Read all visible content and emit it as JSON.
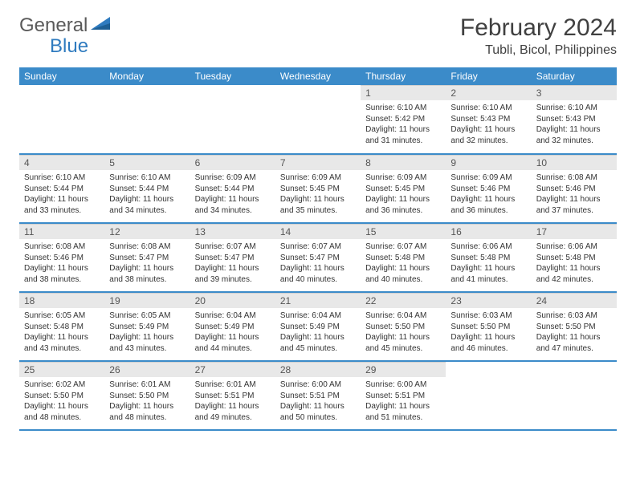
{
  "brand": {
    "general": "General",
    "blue": "Blue"
  },
  "title": "February 2024",
  "location": "Tubli, Bicol, Philippines",
  "colors": {
    "header_bg": "#3b8bc9",
    "header_text": "#ffffff",
    "daynum_bg": "#e8e8e8",
    "row_border": "#3b8bc9",
    "brand_blue": "#2f7bbf",
    "brand_gray": "#5a5a5a"
  },
  "weekdays": [
    "Sunday",
    "Monday",
    "Tuesday",
    "Wednesday",
    "Thursday",
    "Friday",
    "Saturday"
  ],
  "leading_blanks": 4,
  "days": [
    {
      "n": 1,
      "sr": "6:10 AM",
      "ss": "5:42 PM",
      "dl": "11 hours and 31 minutes."
    },
    {
      "n": 2,
      "sr": "6:10 AM",
      "ss": "5:43 PM",
      "dl": "11 hours and 32 minutes."
    },
    {
      "n": 3,
      "sr": "6:10 AM",
      "ss": "5:43 PM",
      "dl": "11 hours and 32 minutes."
    },
    {
      "n": 4,
      "sr": "6:10 AM",
      "ss": "5:44 PM",
      "dl": "11 hours and 33 minutes."
    },
    {
      "n": 5,
      "sr": "6:10 AM",
      "ss": "5:44 PM",
      "dl": "11 hours and 34 minutes."
    },
    {
      "n": 6,
      "sr": "6:09 AM",
      "ss": "5:44 PM",
      "dl": "11 hours and 34 minutes."
    },
    {
      "n": 7,
      "sr": "6:09 AM",
      "ss": "5:45 PM",
      "dl": "11 hours and 35 minutes."
    },
    {
      "n": 8,
      "sr": "6:09 AM",
      "ss": "5:45 PM",
      "dl": "11 hours and 36 minutes."
    },
    {
      "n": 9,
      "sr": "6:09 AM",
      "ss": "5:46 PM",
      "dl": "11 hours and 36 minutes."
    },
    {
      "n": 10,
      "sr": "6:08 AM",
      "ss": "5:46 PM",
      "dl": "11 hours and 37 minutes."
    },
    {
      "n": 11,
      "sr": "6:08 AM",
      "ss": "5:46 PM",
      "dl": "11 hours and 38 minutes."
    },
    {
      "n": 12,
      "sr": "6:08 AM",
      "ss": "5:47 PM",
      "dl": "11 hours and 38 minutes."
    },
    {
      "n": 13,
      "sr": "6:07 AM",
      "ss": "5:47 PM",
      "dl": "11 hours and 39 minutes."
    },
    {
      "n": 14,
      "sr": "6:07 AM",
      "ss": "5:47 PM",
      "dl": "11 hours and 40 minutes."
    },
    {
      "n": 15,
      "sr": "6:07 AM",
      "ss": "5:48 PM",
      "dl": "11 hours and 40 minutes."
    },
    {
      "n": 16,
      "sr": "6:06 AM",
      "ss": "5:48 PM",
      "dl": "11 hours and 41 minutes."
    },
    {
      "n": 17,
      "sr": "6:06 AM",
      "ss": "5:48 PM",
      "dl": "11 hours and 42 minutes."
    },
    {
      "n": 18,
      "sr": "6:05 AM",
      "ss": "5:48 PM",
      "dl": "11 hours and 43 minutes."
    },
    {
      "n": 19,
      "sr": "6:05 AM",
      "ss": "5:49 PM",
      "dl": "11 hours and 43 minutes."
    },
    {
      "n": 20,
      "sr": "6:04 AM",
      "ss": "5:49 PM",
      "dl": "11 hours and 44 minutes."
    },
    {
      "n": 21,
      "sr": "6:04 AM",
      "ss": "5:49 PM",
      "dl": "11 hours and 45 minutes."
    },
    {
      "n": 22,
      "sr": "6:04 AM",
      "ss": "5:50 PM",
      "dl": "11 hours and 45 minutes."
    },
    {
      "n": 23,
      "sr": "6:03 AM",
      "ss": "5:50 PM",
      "dl": "11 hours and 46 minutes."
    },
    {
      "n": 24,
      "sr": "6:03 AM",
      "ss": "5:50 PM",
      "dl": "11 hours and 47 minutes."
    },
    {
      "n": 25,
      "sr": "6:02 AM",
      "ss": "5:50 PM",
      "dl": "11 hours and 48 minutes."
    },
    {
      "n": 26,
      "sr": "6:01 AM",
      "ss": "5:50 PM",
      "dl": "11 hours and 48 minutes."
    },
    {
      "n": 27,
      "sr": "6:01 AM",
      "ss": "5:51 PM",
      "dl": "11 hours and 49 minutes."
    },
    {
      "n": 28,
      "sr": "6:00 AM",
      "ss": "5:51 PM",
      "dl": "11 hours and 50 minutes."
    },
    {
      "n": 29,
      "sr": "6:00 AM",
      "ss": "5:51 PM",
      "dl": "11 hours and 51 minutes."
    }
  ],
  "labels": {
    "sunrise": "Sunrise:",
    "sunset": "Sunset:",
    "daylight": "Daylight:"
  }
}
